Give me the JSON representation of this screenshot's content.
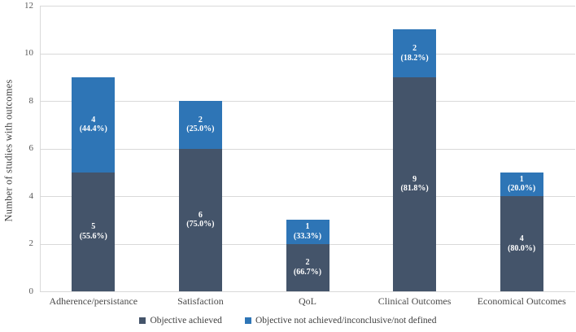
{
  "chart_data": {
    "type": "bar",
    "stacked": true,
    "title": "",
    "xlabel": "",
    "ylabel": "Number of studies with outcomes",
    "ylim": [
      0,
      12
    ],
    "yticks": [
      0,
      2,
      4,
      6,
      8,
      10,
      12
    ],
    "grid": "horizontal",
    "legend_position": "bottom",
    "categories": [
      "Adherence/persistance",
      "Satisfaction",
      "QoL",
      "Clinical Outcomes",
      "Economical Outcomes"
    ],
    "series": [
      {
        "name": "Objective achieved",
        "color": "#44546A",
        "values": [
          5,
          6,
          2,
          9,
          4
        ],
        "value_labels": [
          "5",
          "6",
          "2",
          "9",
          "4"
        ],
        "pct_labels": [
          "(55.6%)",
          "(75.0%)",
          "(66.7%)",
          "(81.8%)",
          "(80.0%)"
        ]
      },
      {
        "name": "Objective not achieved/inconclusive/not defined",
        "color": "#2E75B6",
        "values": [
          4,
          2,
          1,
          2,
          1
        ],
        "value_labels": [
          "4",
          "2",
          "1",
          "2",
          "1"
        ],
        "pct_labels": [
          "(44.4%)",
          "(25.0%)",
          "(33.3%)",
          "(18.2%)",
          "(20.0%)"
        ]
      }
    ],
    "colors": {
      "grid": "#D9D9D9",
      "axis": "#D9D9D9",
      "tick_text": "#595959",
      "category_text": "#4A4A4A",
      "bar_label_text": "#FFFFFF"
    }
  }
}
